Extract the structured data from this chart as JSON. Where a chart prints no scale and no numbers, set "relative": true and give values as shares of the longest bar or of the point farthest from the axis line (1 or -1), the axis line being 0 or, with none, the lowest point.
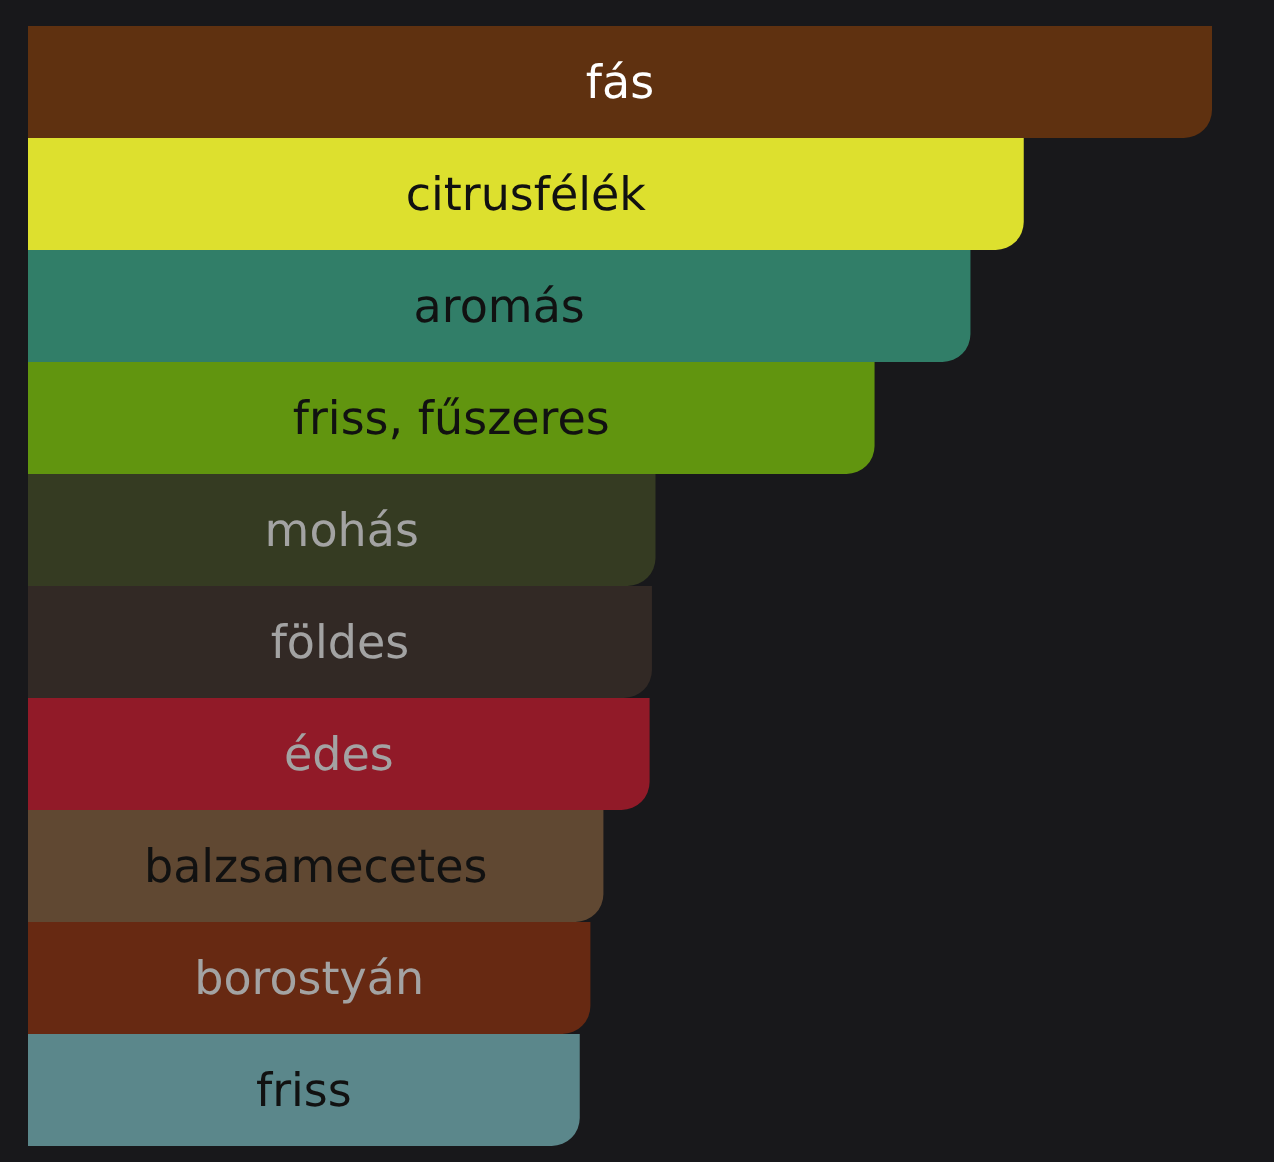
{
  "chart_data": {
    "type": "bar",
    "orientation": "horizontal",
    "relative": true,
    "categories": [
      "fás",
      "citrusfélék",
      "aromás",
      "friss, fűszeres",
      "mohás",
      "földes",
      "édes",
      "balzsamecetes",
      "borostyán",
      "friss"
    ],
    "values": [
      1,
      0.841,
      0.796,
      0.715,
      0.53,
      0.527,
      0.525,
      0.486,
      0.475,
      0.466
    ],
    "colors": [
      "#5f3110",
      "#dde02e",
      "#317e68",
      "#61950f",
      "#353b22",
      "#322925",
      "#911a28",
      "#604832",
      "#672912",
      "#5b878b"
    ]
  }
}
